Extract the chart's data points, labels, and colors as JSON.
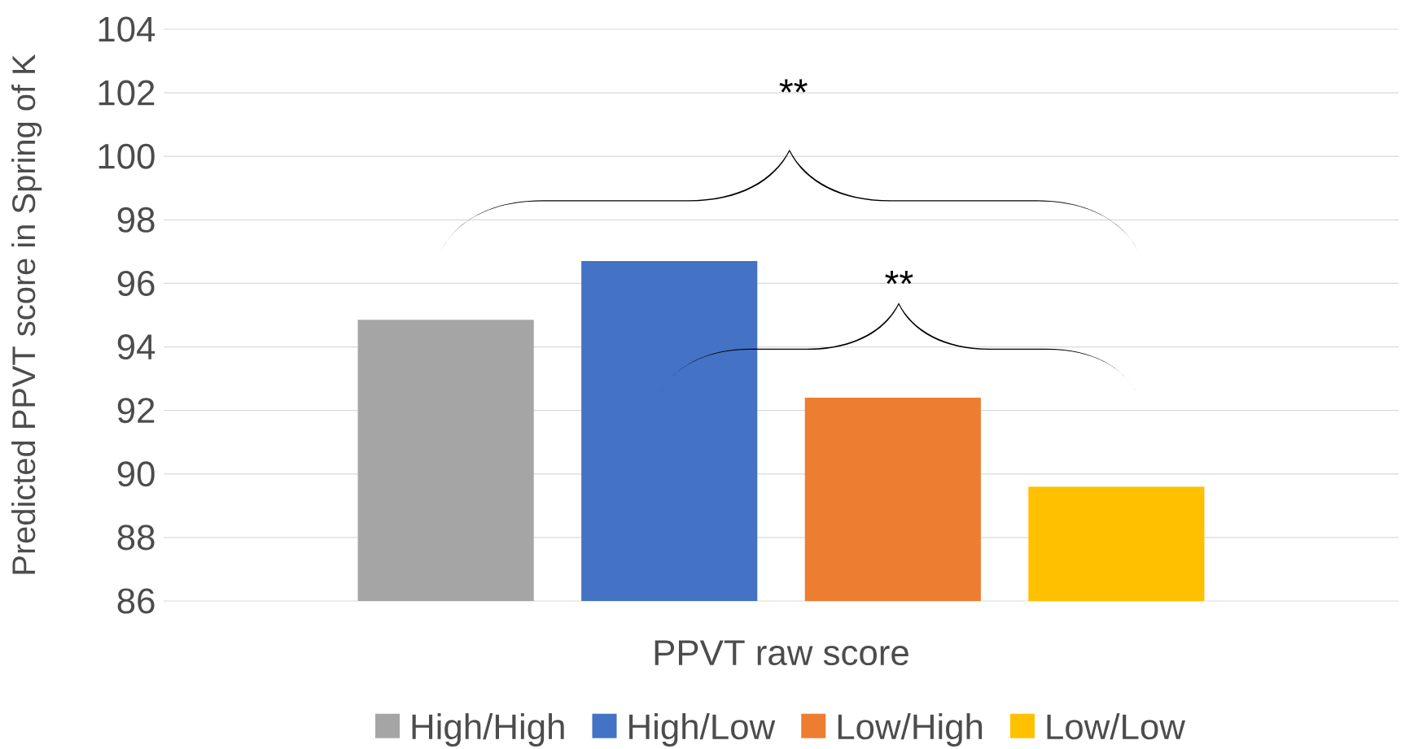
{
  "chart_data": {
    "type": "bar",
    "ylabel": "Predicted PPVT score in Spring of K",
    "categories": [
      "PPVT raw score"
    ],
    "series": [
      {
        "name": "High/High",
        "color": "#a5a5a5",
        "values": [
          94.85
        ]
      },
      {
        "name": "High/Low",
        "color": "#4472c4",
        "values": [
          96.7
        ]
      },
      {
        "name": "Low/High",
        "color": "#ed7d31",
        "values": [
          92.4
        ]
      },
      {
        "name": "Low/Low",
        "color": "#ffc000",
        "values": [
          89.6
        ]
      }
    ],
    "ylim": [
      86,
      104
    ],
    "yticks": [
      86,
      88,
      90,
      92,
      94,
      96,
      98,
      100,
      102,
      104
    ],
    "grid": "y",
    "legend": "bottom",
    "annotations": [
      "**",
      "**"
    ]
  }
}
